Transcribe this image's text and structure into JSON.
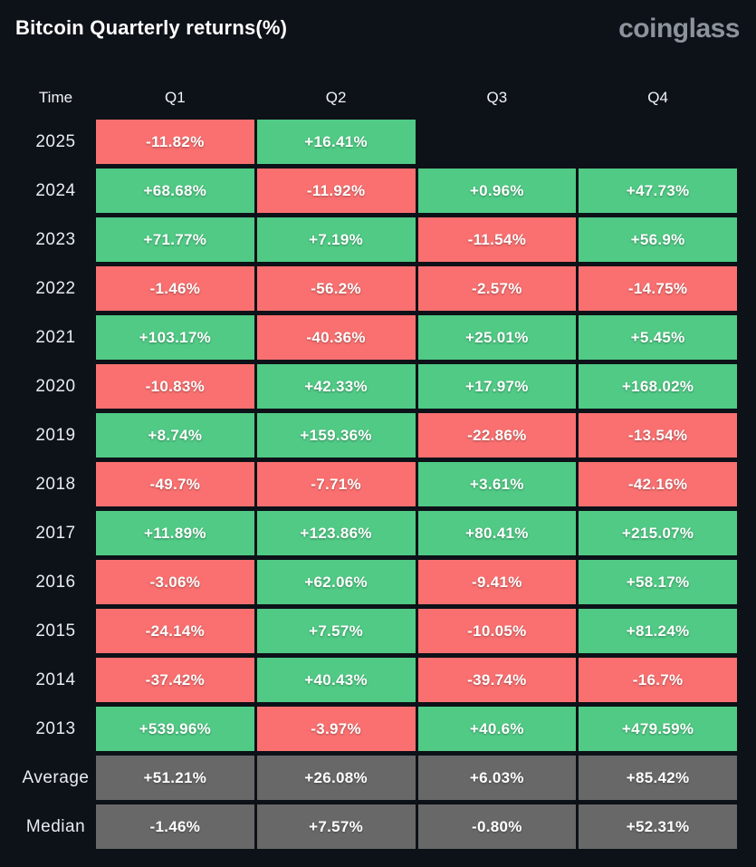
{
  "header": {
    "title": "Bitcoin Quarterly returns(%)",
    "logo": "coinglass"
  },
  "table": {
    "columns": [
      "Time",
      "Q1",
      "Q2",
      "Q3",
      "Q4"
    ],
    "rows": [
      {
        "label": "2025",
        "type": "year",
        "values": [
          "-11.82%",
          "+16.41%",
          null,
          null
        ]
      },
      {
        "label": "2024",
        "type": "year",
        "values": [
          "+68.68%",
          "-11.92%",
          "+0.96%",
          "+47.73%"
        ]
      },
      {
        "label": "2023",
        "type": "year",
        "values": [
          "+71.77%",
          "+7.19%",
          "-11.54%",
          "+56.9%"
        ]
      },
      {
        "label": "2022",
        "type": "year",
        "values": [
          "-1.46%",
          "-56.2%",
          "-2.57%",
          "-14.75%"
        ]
      },
      {
        "label": "2021",
        "type": "year",
        "values": [
          "+103.17%",
          "-40.36%",
          "+25.01%",
          "+5.45%"
        ]
      },
      {
        "label": "2020",
        "type": "year",
        "values": [
          "-10.83%",
          "+42.33%",
          "+17.97%",
          "+168.02%"
        ]
      },
      {
        "label": "2019",
        "type": "year",
        "values": [
          "+8.74%",
          "+159.36%",
          "-22.86%",
          "-13.54%"
        ]
      },
      {
        "label": "2018",
        "type": "year",
        "values": [
          "-49.7%",
          "-7.71%",
          "+3.61%",
          "-42.16%"
        ]
      },
      {
        "label": "2017",
        "type": "year",
        "values": [
          "+11.89%",
          "+123.86%",
          "+80.41%",
          "+215.07%"
        ]
      },
      {
        "label": "2016",
        "type": "year",
        "values": [
          "-3.06%",
          "+62.06%",
          "-9.41%",
          "+58.17%"
        ]
      },
      {
        "label": "2015",
        "type": "year",
        "values": [
          "-24.14%",
          "+7.57%",
          "-10.05%",
          "+81.24%"
        ]
      },
      {
        "label": "2014",
        "type": "year",
        "values": [
          "-37.42%",
          "+40.43%",
          "-39.74%",
          "-16.7%"
        ]
      },
      {
        "label": "2013",
        "type": "year",
        "values": [
          "+539.96%",
          "-3.97%",
          "+40.6%",
          "+479.59%"
        ]
      },
      {
        "label": "Average",
        "type": "summary",
        "values": [
          "+51.21%",
          "+26.08%",
          "+6.03%",
          "+85.42%"
        ]
      },
      {
        "label": "Median",
        "type": "summary",
        "values": [
          "-1.46%",
          "+7.57%",
          "-0.80%",
          "+52.31%"
        ]
      }
    ],
    "colors": {
      "positive": "#50ca85",
      "negative": "#fa7070",
      "summary": "#686868",
      "background": "#0d1118"
    }
  },
  "chart_data": {
    "type": "heatmap",
    "title": "Bitcoin Quarterly returns(%)",
    "columns": [
      "Q1",
      "Q2",
      "Q3",
      "Q4"
    ],
    "rows": [
      "2025",
      "2024",
      "2023",
      "2022",
      "2021",
      "2020",
      "2019",
      "2018",
      "2017",
      "2016",
      "2015",
      "2014",
      "2013",
      "Average",
      "Median"
    ],
    "values_pct": [
      [
        -11.82,
        16.41,
        null,
        null
      ],
      [
        68.68,
        -11.92,
        0.96,
        47.73
      ],
      [
        71.77,
        7.19,
        -11.54,
        56.9
      ],
      [
        -1.46,
        -56.2,
        -2.57,
        -14.75
      ],
      [
        103.17,
        -40.36,
        25.01,
        5.45
      ],
      [
        -10.83,
        42.33,
        17.97,
        168.02
      ],
      [
        8.74,
        159.36,
        -22.86,
        -13.54
      ],
      [
        -49.7,
        -7.71,
        3.61,
        -42.16
      ],
      [
        11.89,
        123.86,
        80.41,
        215.07
      ],
      [
        -3.06,
        62.06,
        -9.41,
        58.17
      ],
      [
        -24.14,
        7.57,
        -10.05,
        81.24
      ],
      [
        -37.42,
        40.43,
        -39.74,
        -16.7
      ],
      [
        539.96,
        -3.97,
        40.6,
        479.59
      ],
      [
        51.21,
        26.08,
        6.03,
        85.42
      ],
      [
        -1.46,
        7.57,
        -0.8,
        52.31
      ]
    ],
    "legend_position": "none",
    "color_rule": "green = positive return, red = negative return, gray = Average/Median summary rows"
  }
}
